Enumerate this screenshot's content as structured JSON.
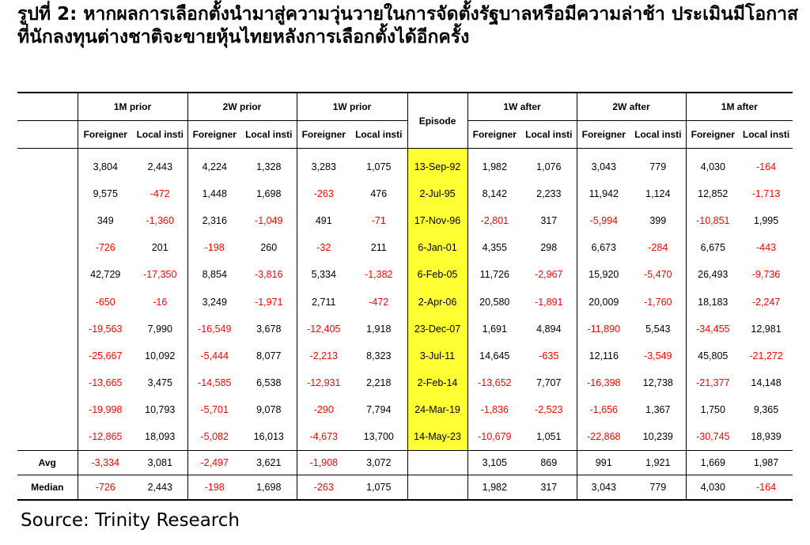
{
  "title": "รูปที่ 2: หากผลการเลือกตั้งนำมาสู่ความวุ่นวายในการจัดตั้งรัฐบาลหรือมีความล่าช้า ประเมินมีโอกาสที่นักลงทุนต่างชาติจะขายหุ้นไทยหลังการเลือกตั้งได้อีกครั้ง",
  "source": "Source: Trinity Research",
  "colors": {
    "episode_highlight": "#ffff33",
    "negative": "#ff0000"
  },
  "chart_data": {
    "type": "table",
    "period_headers": [
      "1M prior",
      "2W prior",
      "1W prior",
      "1W after",
      "2W after",
      "1M after"
    ],
    "episode_header": "Episode",
    "sub_headers": [
      "Foreigner",
      "Local insti"
    ],
    "rows": [
      {
        "episode": "13-Sep-92",
        "values": [
          "3,804",
          "2,443",
          "4,224",
          "1,328",
          "3,283",
          "1,075",
          "1,982",
          "1,076",
          "3,043",
          "779",
          "4,030",
          "-164"
        ]
      },
      {
        "episode": "2-Jul-95",
        "values": [
          "9,575",
          "-472",
          "1,448",
          "1,698",
          "-263",
          "476",
          "8,142",
          "2,233",
          "11,942",
          "1,124",
          "12,852",
          "-1,713"
        ]
      },
      {
        "episode": "17-Nov-96",
        "values": [
          "349",
          "-1,360",
          "2,316",
          "-1,049",
          "491",
          "-71",
          "-2,801",
          "317",
          "-5,994",
          "399",
          "-10,851",
          "1,995"
        ]
      },
      {
        "episode": "6-Jan-01",
        "values": [
          "-726",
          "201",
          "-198",
          "260",
          "-32",
          "211",
          "4,355",
          "298",
          "6,673",
          "-284",
          "6,675",
          "-443"
        ]
      },
      {
        "episode": "6-Feb-05",
        "values": [
          "42,729",
          "-17,350",
          "8,854",
          "-3,816",
          "5,334",
          "-1,382",
          "11,726",
          "-2,967",
          "15,920",
          "-5,470",
          "26,493",
          "-9,736"
        ]
      },
      {
        "episode": "2-Apr-06",
        "values": [
          "-650",
          "-16",
          "3,249",
          "-1,971",
          "2,711",
          "-472",
          "20,580",
          "-1,891",
          "20,009",
          "-1,760",
          "18,183",
          "-2,247"
        ]
      },
      {
        "episode": "23-Dec-07",
        "values": [
          "-19,563",
          "7,990",
          "-16,549",
          "3,678",
          "-12,405",
          "1,918",
          "1,691",
          "4,894",
          "-11,890",
          "5,543",
          "-34,455",
          "12,981"
        ]
      },
      {
        "episode": "3-Jul-11",
        "values": [
          "-25,667",
          "10,092",
          "-5,444",
          "8,077",
          "-2,213",
          "8,323",
          "14,645",
          "-635",
          "12,116",
          "-3,549",
          "45,805",
          "-21,272"
        ]
      },
      {
        "episode": "2-Feb-14",
        "values": [
          "-13,665",
          "3,475",
          "-14,585",
          "6,538",
          "-12,931",
          "2,218",
          "-13,652",
          "7,707",
          "-16,398",
          "12,738",
          "-21,377",
          "14,148"
        ]
      },
      {
        "episode": "24-Mar-19",
        "values": [
          "-19,998",
          "10,793",
          "-5,701",
          "9,078",
          "-290",
          "7,794",
          "-1,836",
          "-2,523",
          "-1,656",
          "1,367",
          "1,750",
          "9,365"
        ]
      },
      {
        "episode": "14-May-23",
        "values": [
          "-12,865",
          "18,093",
          "-5,082",
          "16,013",
          "-4,673",
          "13,700",
          "-10,679",
          "1,051",
          "-22,868",
          "10,239",
          "-30,745",
          "18,939"
        ]
      }
    ],
    "summary": [
      {
        "label": "Avg",
        "values": [
          "-3,334",
          "3,081",
          "-2,497",
          "3,621",
          "-1,908",
          "3,072",
          "3,105",
          "869",
          "991",
          "1,921",
          "1,669",
          "1,987"
        ]
      },
      {
        "label": "Median",
        "values": [
          "-726",
          "2,443",
          "-198",
          "1,698",
          "-263",
          "1,075",
          "1,982",
          "317",
          "3,043",
          "779",
          "4,030",
          "-164"
        ]
      }
    ]
  }
}
